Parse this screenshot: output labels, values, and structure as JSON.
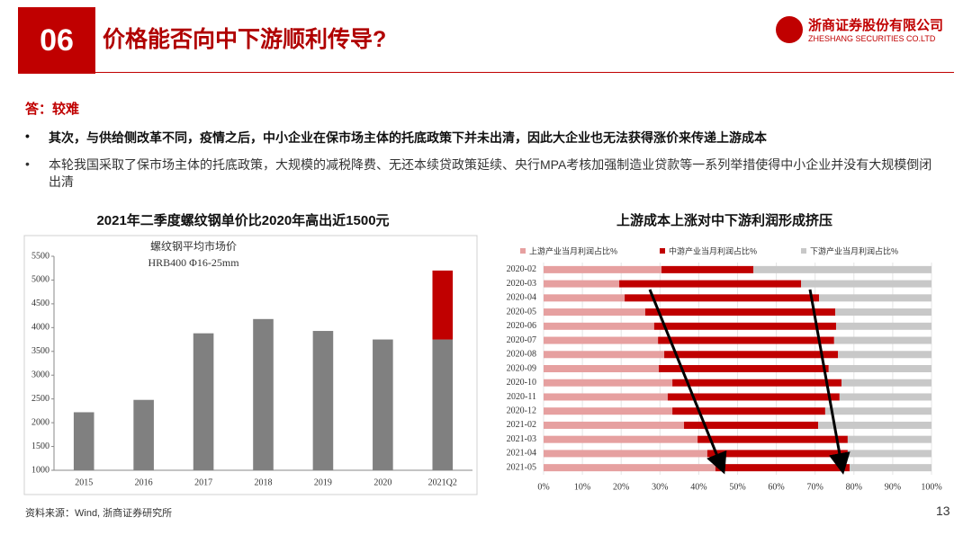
{
  "header": {
    "number": "06",
    "title": "价格能否向中下游顺利传导?",
    "company": "浙商证券股份有限公司",
    "company_en": "ZHESHANG SECURITIES CO.LTD"
  },
  "answer": "答：较难",
  "bullets": [
    "其次，与供给侧改革不同，疫情之后，中小企业在保市场主体的托底政策下并未出清，因此大企业也无法获得涨价来传递上游成本",
    "本轮我国采取了保市场主体的托底政策，大规模的减税降费、无还本续贷政策延续、央行MPA考核加强制造业贷款等一系列举措使得中小企业并没有大规模倒闭出清"
  ],
  "chart_data": [
    {
      "type": "bar",
      "title": "2021年二季度螺纹钢单价比2020年高出近1500元",
      "annotations": [
        "螺纹钢平均市场价",
        "HRB400 Φ16-25mm"
      ],
      "categories": [
        "2015",
        "2016",
        "2017",
        "2018",
        "2019",
        "2020",
        "2021Q2"
      ],
      "series": [
        {
          "color": "#808080",
          "values": [
            2220,
            2480,
            3880,
            4180,
            3930,
            3750,
            3750
          ]
        },
        {
          "color": "#c00000",
          "values": [
            null,
            null,
            null,
            null,
            null,
            null,
            1450
          ]
        }
      ],
      "ylim": [
        1000,
        5500
      ],
      "yticks": [
        1000,
        1500,
        2000,
        2500,
        3000,
        3500,
        4000,
        4500,
        5000,
        5500
      ],
      "grid": false
    },
    {
      "type": "barh",
      "title": "上游成本上涨对中下游利润形成挤压",
      "categories": [
        "2020-02",
        "2020-03",
        "2020-04",
        "2020-05",
        "2020-06",
        "2020-07",
        "2020-08",
        "2020-09",
        "2020-10",
        "2020-11",
        "2020-12",
        "2021-02",
        "2021-03",
        "2021-04",
        "2021-05"
      ],
      "series": [
        {
          "name": "上游产业当月利润占比%",
          "color": "#e6a0a0",
          "values": [
            30.4,
            19.5,
            20.9,
            26.2,
            28.5,
            29.5,
            31.1,
            29.7,
            33.2,
            32.0,
            33.2,
            36.2,
            39.7,
            42.2,
            44.3
          ]
        },
        {
          "name": "中游产业当月利润占比%",
          "color": "#c00000",
          "values": [
            23.7,
            46.9,
            50.1,
            49.0,
            46.9,
            45.4,
            44.8,
            43.8,
            43.6,
            44.3,
            39.4,
            34.6,
            38.7,
            36.2,
            34.6
          ]
        },
        {
          "name": "下游产业当月利润占比%",
          "color": "#c8c8c8",
          "values": [
            45.9,
            33.6,
            29.0,
            24.8,
            24.6,
            25.1,
            24.1,
            26.5,
            23.2,
            23.7,
            27.4,
            29.2,
            21.6,
            21.6,
            21.1
          ]
        }
      ],
      "xlim": [
        0,
        100
      ],
      "xticks": [
        {
          "value": 0,
          "label": "0%"
        },
        {
          "value": 10,
          "label": "10%"
        },
        {
          "value": 20,
          "label": "20%"
        },
        {
          "value": 30,
          "label": "30%"
        },
        {
          "value": 40,
          "label": "40%"
        },
        {
          "value": 50,
          "label": "50%"
        },
        {
          "value": 60,
          "label": "60%"
        },
        {
          "value": 70,
          "label": "70%"
        },
        {
          "value": 80,
          "label": "80%"
        },
        {
          "value": 90,
          "label": "90%"
        },
        {
          "value": 100,
          "label": "100%"
        }
      ],
      "grid": true,
      "legend": "top"
    }
  ],
  "footer": {
    "source": "资料来源：Wind, 浙商证券研究所",
    "page": "13"
  }
}
